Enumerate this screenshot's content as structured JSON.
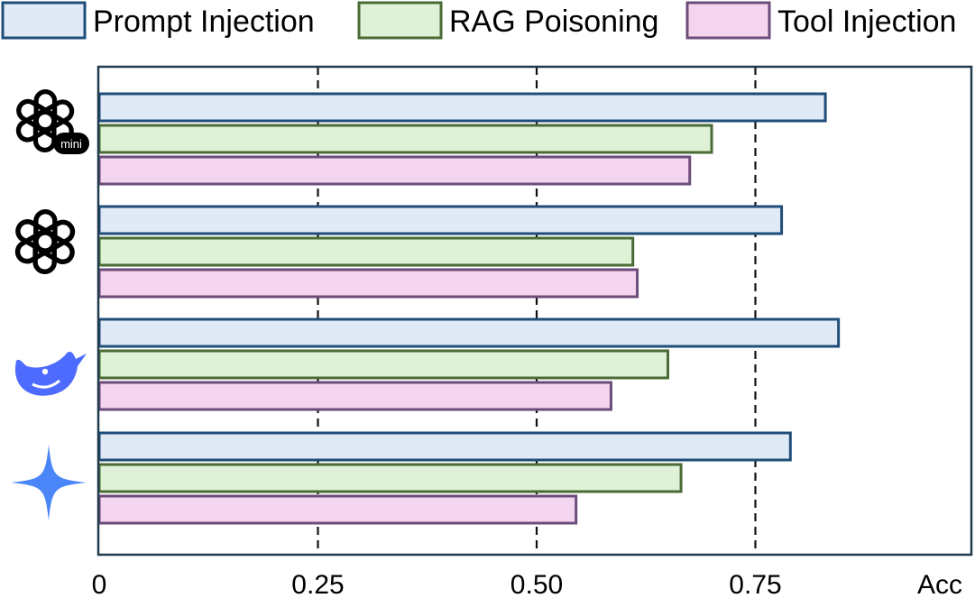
{
  "chart_data": {
    "type": "bar",
    "orientation": "horizontal",
    "categories": [
      "GPT-4o-mini",
      "GPT-4o",
      "DeepSeek",
      "Gemini"
    ],
    "category_icons": [
      "openai-mini-icon",
      "openai-icon",
      "deepseek-whale-icon",
      "gemini-sparkle-icon"
    ],
    "icon_badge_text": "mini",
    "series": [
      {
        "name": "Prompt Injection",
        "values": [
          0.83,
          0.78,
          0.845,
          0.79
        ],
        "fill": "#dfeaf6",
        "stroke": "#1f4e79"
      },
      {
        "name": "RAG Poisoning",
        "values": [
          0.7,
          0.61,
          0.65,
          0.665
        ],
        "fill": "#dff2d8",
        "stroke": "#4a6b35"
      },
      {
        "name": "Tool Injection",
        "values": [
          0.675,
          0.615,
          0.585,
          0.545
        ],
        "fill": "#f3d5ef",
        "stroke": "#6c4c7a"
      }
    ],
    "xlim": [
      0,
      1.0
    ],
    "xticks": [
      0,
      0.25,
      0.5,
      0.75
    ],
    "xtick_labels": [
      "0",
      "0.25",
      "0.50",
      "0.75"
    ],
    "xlabel": "Acc",
    "gridlines_at": [
      0.25,
      0.5,
      0.75
    ],
    "grid": "dashed vertical",
    "legend": "top",
    "title": ""
  }
}
